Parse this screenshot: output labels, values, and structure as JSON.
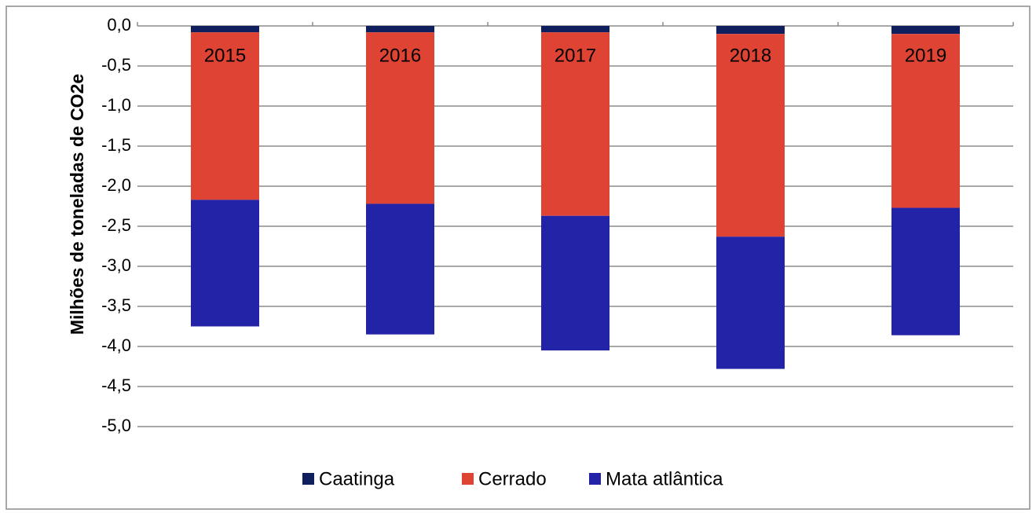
{
  "chart_data": {
    "type": "stacked_bar",
    "y_label": "Milhões de toneladas de CO2e",
    "categories": [
      "2015",
      "2016",
      "2017",
      "2018",
      "2019"
    ],
    "series": [
      {
        "name": "Caatinga",
        "color": "#0f1f5e",
        "values": [
          -0.08,
          -0.08,
          -0.08,
          -0.1,
          -0.1
        ]
      },
      {
        "name": "Cerrado",
        "color": "#df4334",
        "values": [
          -2.09,
          -2.14,
          -2.29,
          -2.53,
          -2.17
        ]
      },
      {
        "name": "Mata atlântica",
        "color": "#2323a8",
        "values": [
          -1.58,
          -1.63,
          -1.68,
          -1.65,
          -1.59
        ]
      }
    ],
    "ylim": [
      -5.0,
      0.0
    ],
    "yticks": [
      {
        "value": 0.0,
        "label": "0,0"
      },
      {
        "value": -0.5,
        "label": "-0,5"
      },
      {
        "value": -1.0,
        "label": "-1,0"
      },
      {
        "value": -1.5,
        "label": "-1,5"
      },
      {
        "value": -2.0,
        "label": "-2,0"
      },
      {
        "value": -2.5,
        "label": "-2,5"
      },
      {
        "value": -3.0,
        "label": "-3,0"
      },
      {
        "value": -3.5,
        "label": "-3,5"
      },
      {
        "value": -4.0,
        "label": "-4,0"
      },
      {
        "value": -4.5,
        "label": "-4,5"
      },
      {
        "value": -5.0,
        "label": "-5,0"
      }
    ],
    "grid": true,
    "legend": "bottom"
  }
}
